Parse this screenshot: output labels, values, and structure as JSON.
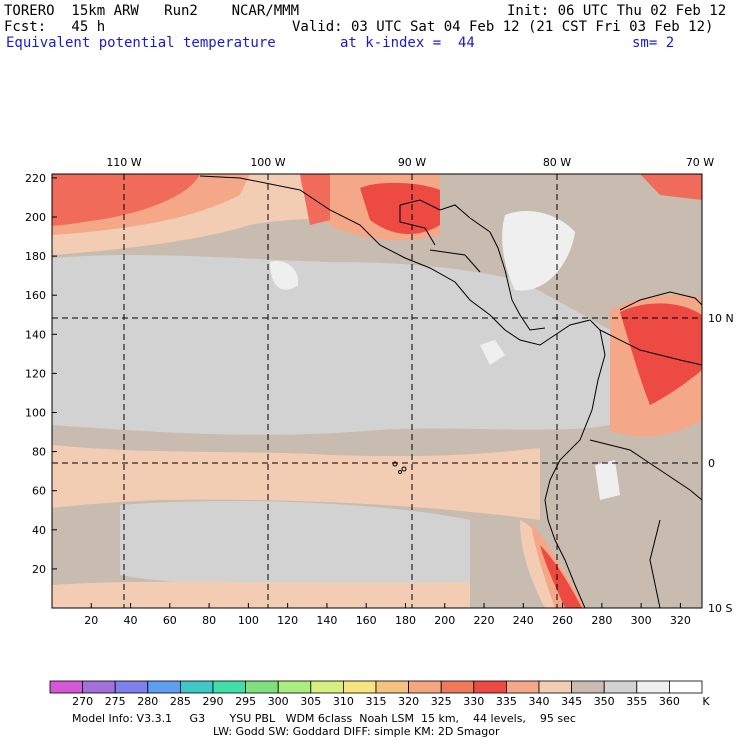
{
  "header": {
    "model": "TORERO  15km ARW   Run2    NCAR/MMM",
    "init": "Init: 06 UTC Thu 02 Feb 12",
    "fcst": "Fcst:   45 h",
    "valid": "Valid: 03 UTC Sat 04 Feb 12 (21 CST Fri 03 Feb 12)",
    "field": "Equivalent potential temperature",
    "level": "at k-index =  44",
    "smoothing": "sm= 2"
  },
  "map": {
    "lon_labels": [
      "110 W",
      "100 W",
      "90 W",
      "80 W",
      "70 W"
    ],
    "lat_labels": [
      "10 N",
      "0",
      "10 S"
    ],
    "x_ticks": [
      "20",
      "40",
      "60",
      "80",
      "100",
      "120",
      "140",
      "160",
      "180",
      "200",
      "220",
      "240",
      "260",
      "280",
      "300",
      "320"
    ],
    "y_ticks": [
      "220",
      "200",
      "180",
      "160",
      "140",
      "120",
      "100",
      "80",
      "60",
      "40",
      "20"
    ],
    "colors": {
      "base_gray": "#c8bcb0",
      "light_gray": "#d2d2d2",
      "peach": "#f3cdb3",
      "salmon": "#f5a888",
      "red": "#f06b5a",
      "bright_red": "#ed4a43",
      "white_patch": "#efefef",
      "coast": "#000000"
    }
  },
  "colorbar": {
    "labels": [
      "270",
      "275",
      "280",
      "285",
      "290",
      "295",
      "300",
      "305",
      "310",
      "315",
      "320",
      "325",
      "330",
      "335",
      "340",
      "345",
      "350",
      "355",
      "360"
    ],
    "unit": "K",
    "colors": [
      "#d657d6",
      "#a36fd9",
      "#7f7fee",
      "#5e9ef0",
      "#3fc8c8",
      "#3fe0a8",
      "#7fe07f",
      "#a8ef7f",
      "#d6f07f",
      "#f6e47f",
      "#f5c27f",
      "#f3a67f",
      "#ee7a5a",
      "#ed4a43",
      "#f5a888",
      "#f3cdb3",
      "#c8bcb0",
      "#d2d2d2",
      "#efefef",
      "#ffffff"
    ]
  },
  "footer": {
    "line1": "Model Info: V3.3.1     G3       YSU PBL   WDM 6class  Noah LSM  15 km,    44 levels,    95 sec",
    "line2": "LW: Godd SW: Goddard DIFF: simple KM: 2D Smagor"
  }
}
